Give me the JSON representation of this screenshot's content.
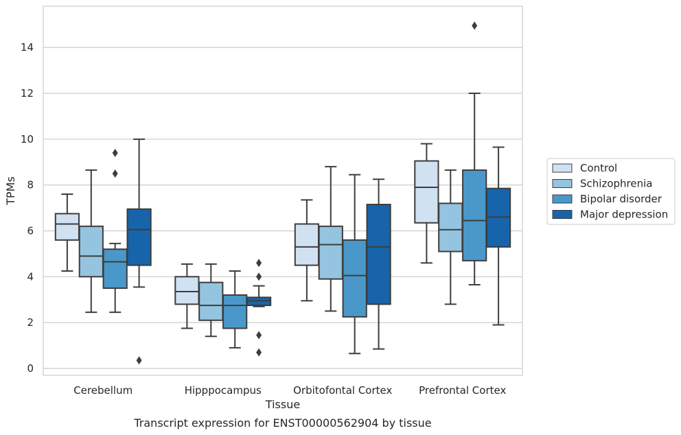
{
  "chart_data": {
    "type": "box",
    "xlabel": "Tissue",
    "ylabel": "TPMs",
    "caption": "Transcript expression for ENST00000562904 by tissue",
    "ylim": [
      -0.3,
      15.8
    ],
    "yticks": [
      0,
      2,
      4,
      6,
      8,
      10,
      12,
      14
    ],
    "grid": "horizontal",
    "legend_position": "right",
    "categories": [
      "Cerebellum",
      "Hipppocampus",
      "Orbitofontal Cortex",
      "Prefrontal Cortex"
    ],
    "series": [
      {
        "name": "Control",
        "color": "#d0e1f2",
        "boxes": [
          {
            "whislo": 4.25,
            "q1": 5.6,
            "med": 6.3,
            "q3": 6.75,
            "whishi": 7.6,
            "fliers": []
          },
          {
            "whislo": 1.75,
            "q1": 2.8,
            "med": 3.35,
            "q3": 4.0,
            "whishi": 4.55,
            "fliers": []
          },
          {
            "whislo": 2.95,
            "q1": 4.5,
            "med": 5.3,
            "q3": 6.3,
            "whishi": 7.35,
            "fliers": []
          },
          {
            "whislo": 4.6,
            "q1": 6.35,
            "med": 7.9,
            "q3": 9.05,
            "whishi": 9.8,
            "fliers": []
          }
        ]
      },
      {
        "name": "Schizophrenia",
        "color": "#94c4df",
        "boxes": [
          {
            "whislo": 2.45,
            "q1": 4.0,
            "med": 4.9,
            "q3": 6.2,
            "whishi": 8.65,
            "fliers": []
          },
          {
            "whislo": 1.4,
            "q1": 2.1,
            "med": 2.75,
            "q3": 3.75,
            "whishi": 4.55,
            "fliers": []
          },
          {
            "whislo": 2.5,
            "q1": 3.9,
            "med": 5.4,
            "q3": 6.2,
            "whishi": 8.8,
            "fliers": []
          },
          {
            "whislo": 2.8,
            "q1": 5.1,
            "med": 6.05,
            "q3": 7.2,
            "whishi": 8.65,
            "fliers": []
          }
        ]
      },
      {
        "name": "Bipolar disorder",
        "color": "#4a98c9",
        "boxes": [
          {
            "whislo": 2.45,
            "q1": 3.5,
            "med": 4.65,
            "q3": 5.2,
            "whishi": 5.45,
            "fliers": [
              8.5,
              9.4
            ]
          },
          {
            "whislo": 0.9,
            "q1": 1.75,
            "med": 2.75,
            "q3": 3.2,
            "whishi": 4.25,
            "fliers": []
          },
          {
            "whislo": 0.65,
            "q1": 2.25,
            "med": 4.05,
            "q3": 5.6,
            "whishi": 8.45,
            "fliers": []
          },
          {
            "whislo": 3.65,
            "q1": 4.7,
            "med": 6.45,
            "q3": 8.65,
            "whishi": 12.0,
            "fliers": [
              14.95
            ]
          }
        ]
      },
      {
        "name": "Major depression",
        "color": "#1764ab",
        "boxes": [
          {
            "whislo": 3.55,
            "q1": 4.5,
            "med": 6.05,
            "q3": 6.95,
            "whishi": 10.0,
            "fliers": [
              0.35
            ]
          },
          {
            "whislo": 2.7,
            "q1": 2.75,
            "med": 2.95,
            "q3": 3.1,
            "whishi": 3.6,
            "fliers": [
              0.7,
              1.45,
              4.0,
              4.6
            ]
          },
          {
            "whislo": 0.85,
            "q1": 2.8,
            "med": 5.3,
            "q3": 7.15,
            "whishi": 8.25,
            "fliers": []
          },
          {
            "whislo": 1.9,
            "q1": 5.3,
            "med": 6.6,
            "q3": 7.85,
            "whishi": 9.65,
            "fliers": []
          }
        ]
      }
    ]
  }
}
